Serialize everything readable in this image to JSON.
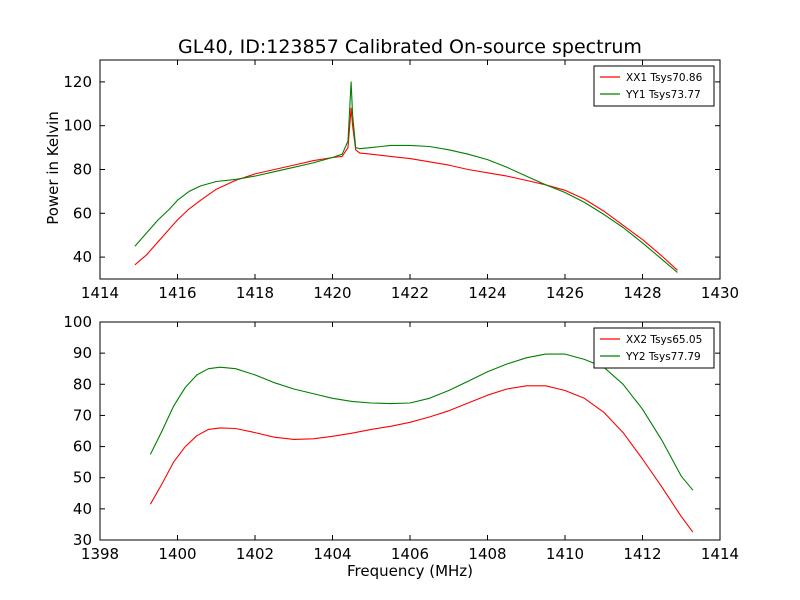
{
  "figure": {
    "title": "GL40, ID:123857 Calibrated On-source spectrum",
    "ylabel": "Power in Kelvin",
    "xlabel": "Frequency (MHz)"
  },
  "chart_data": [
    {
      "type": "line",
      "title": "GL40, ID:123857 Calibrated On-source spectrum",
      "xlabel": "",
      "ylabel": "Power in Kelvin",
      "xlim": [
        1414,
        1430
      ],
      "ylim": [
        30,
        130
      ],
      "xticks": [
        "1414",
        "1416",
        "1418",
        "1420",
        "1422",
        "1424",
        "1426",
        "1428",
        "1430"
      ],
      "yticks": [
        "40",
        "60",
        "80",
        "100",
        "120"
      ],
      "grid": false,
      "legend_position": "top-right",
      "series": [
        {
          "name": "XX1 Tsys70.86",
          "color": "#ff0000",
          "x": [
            1414.9,
            1415.2,
            1415.5,
            1415.8,
            1416.0,
            1416.3,
            1416.6,
            1417.0,
            1417.5,
            1418.0,
            1418.5,
            1419.0,
            1419.5,
            1420.0,
            1420.25,
            1420.4,
            1420.48,
            1420.52,
            1420.6,
            1420.7,
            1421.0,
            1421.5,
            1422.0,
            1422.5,
            1423.0,
            1423.5,
            1424.0,
            1424.5,
            1425.0,
            1425.5,
            1426.0,
            1426.5,
            1427.0,
            1427.5,
            1428.0,
            1428.5,
            1428.9
          ],
          "y": [
            36.5,
            41,
            47,
            53,
            57,
            62,
            66,
            71,
            75,
            78,
            80,
            82,
            84,
            85.5,
            86,
            90,
            108,
            100,
            89,
            87.5,
            87,
            86,
            85,
            83.5,
            82,
            80,
            78.5,
            77,
            75,
            73,
            70.5,
            66.5,
            61,
            54.5,
            48,
            40.5,
            34
          ]
        },
        {
          "name": "YY1 Tsys73.77",
          "color": "#008000",
          "x": [
            1414.9,
            1415.2,
            1415.5,
            1415.8,
            1416.0,
            1416.3,
            1416.6,
            1417.0,
            1417.5,
            1418.0,
            1418.5,
            1419.0,
            1419.5,
            1420.0,
            1420.25,
            1420.4,
            1420.48,
            1420.52,
            1420.6,
            1420.7,
            1421.0,
            1421.5,
            1422.0,
            1422.5,
            1423.0,
            1423.5,
            1424.0,
            1424.5,
            1425.0,
            1425.5,
            1426.0,
            1426.5,
            1427.0,
            1427.5,
            1428.0,
            1428.5,
            1428.9
          ],
          "y": [
            45,
            51,
            57,
            62,
            66,
            70,
            72.5,
            74.5,
            75.5,
            77,
            79,
            81,
            83,
            85.5,
            87,
            93,
            120,
            105,
            90,
            89.5,
            90,
            91,
            91,
            90.5,
            89,
            87,
            84.5,
            81,
            77,
            73,
            69.5,
            65,
            59.5,
            53.5,
            46.5,
            39,
            33
          ]
        }
      ]
    },
    {
      "type": "line",
      "title": "",
      "xlabel": "Frequency (MHz)",
      "ylabel": "",
      "xlim": [
        1398,
        1414
      ],
      "ylim": [
        30,
        100
      ],
      "xticks": [
        "1398",
        "1400",
        "1402",
        "1404",
        "1406",
        "1408",
        "1410",
        "1412",
        "1414"
      ],
      "yticks": [
        "30",
        "40",
        "50",
        "60",
        "70",
        "80",
        "90",
        "100"
      ],
      "grid": false,
      "legend_position": "top-right",
      "series": [
        {
          "name": "XX2 Tsys65.05",
          "color": "#ff0000",
          "x": [
            1399.3,
            1399.6,
            1399.9,
            1400.2,
            1400.5,
            1400.8,
            1401.1,
            1401.5,
            1402.0,
            1402.5,
            1403.0,
            1403.5,
            1404.0,
            1404.5,
            1405.0,
            1405.5,
            1406.0,
            1406.5,
            1407.0,
            1407.5,
            1408.0,
            1408.5,
            1409.0,
            1409.5,
            1410.0,
            1410.5,
            1411.0,
            1411.5,
            1412.0,
            1412.5,
            1413.0,
            1413.3
          ],
          "y": [
            41.5,
            48,
            55,
            60,
            63.5,
            65.5,
            66,
            65.8,
            64.5,
            63,
            62.3,
            62.5,
            63.3,
            64.3,
            65.5,
            66.5,
            67.8,
            69.5,
            71.5,
            74,
            76.5,
            78.5,
            79.5,
            79.5,
            78,
            75.5,
            71,
            64.5,
            56,
            47,
            37.5,
            32.5
          ]
        },
        {
          "name": "YY2 Tsys77.79",
          "color": "#008000",
          "x": [
            1399.3,
            1399.6,
            1399.9,
            1400.2,
            1400.5,
            1400.8,
            1401.1,
            1401.5,
            1402.0,
            1402.5,
            1403.0,
            1403.5,
            1404.0,
            1404.5,
            1405.0,
            1405.5,
            1406.0,
            1406.5,
            1407.0,
            1407.5,
            1408.0,
            1408.5,
            1409.0,
            1409.5,
            1410.0,
            1410.5,
            1411.0,
            1411.5,
            1412.0,
            1412.5,
            1413.0,
            1413.3
          ],
          "y": [
            57.5,
            65,
            73,
            79,
            83,
            85,
            85.5,
            85,
            83,
            80.5,
            78.5,
            77,
            75.5,
            74.5,
            74,
            73.8,
            74,
            75.5,
            78,
            81,
            84,
            86.5,
            88.5,
            89.7,
            89.7,
            88,
            85.5,
            80,
            72,
            62,
            50.5,
            46
          ]
        }
      ]
    }
  ]
}
